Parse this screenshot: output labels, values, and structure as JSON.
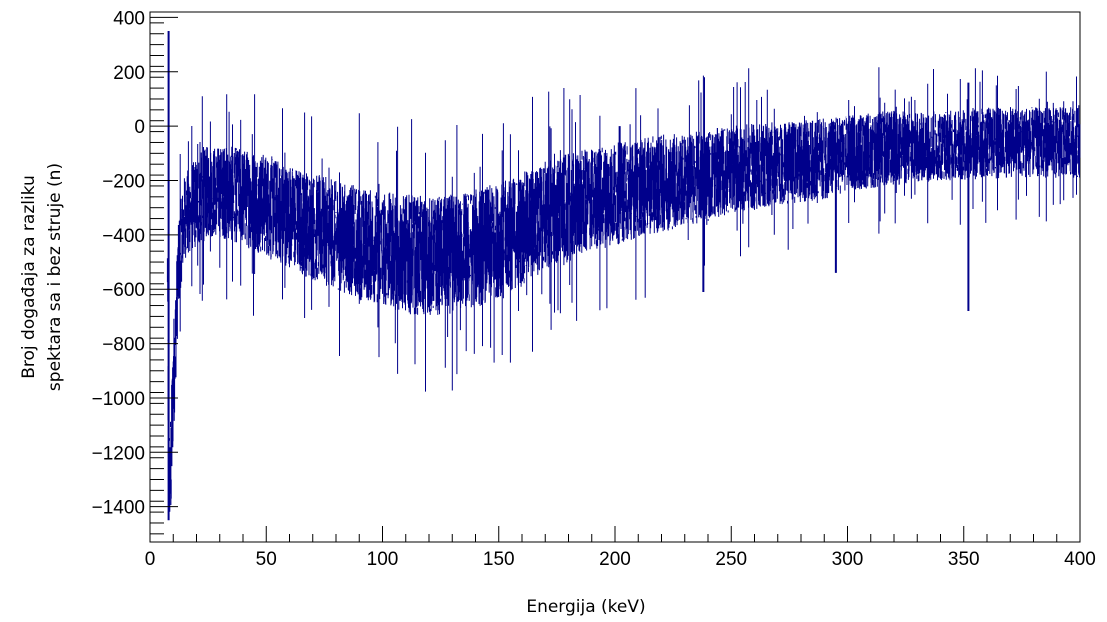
{
  "chart_data": {
    "type": "line",
    "title": "",
    "xlabel": "Energija (keV)",
    "ylabel_lines": [
      "Broj događaja za razliku",
      "spektara sa i bez struje (n)"
    ],
    "xlim": [
      0,
      400
    ],
    "ylim": [
      -1530,
      420
    ],
    "x_ticks": [
      0,
      50,
      100,
      150,
      200,
      250,
      300,
      350,
      400
    ],
    "y_ticks": [
      -1400,
      -1200,
      -1000,
      -800,
      -600,
      -400,
      -200,
      0,
      200,
      400
    ],
    "x_tick_labels": [
      "0",
      "50",
      "100",
      "150",
      "200",
      "250",
      "300",
      "350",
      "400"
    ],
    "y_tick_labels": [
      "−1400",
      "−1200",
      "−1000",
      "−800",
      "−600",
      "−400",
      "−200",
      "0",
      "200",
      "400"
    ],
    "grid": false,
    "series": [
      {
        "color": "#00008b",
        "style": "histogram",
        "x": [
          0,
          7,
          8,
          9,
          10,
          11,
          12,
          13,
          15,
          18,
          20,
          25,
          30,
          40,
          50,
          60,
          70,
          80,
          90,
          100,
          110,
          120,
          130,
          140,
          150,
          160,
          170,
          180,
          190,
          200,
          210,
          220,
          230,
          240,
          250,
          260,
          270,
          280,
          290,
          300,
          310,
          320,
          330,
          340,
          350,
          360,
          370,
          380,
          390,
          400
        ],
        "center": [
          0,
          250,
          -1300,
          -1250,
          -950,
          -780,
          -560,
          -450,
          -330,
          -300,
          -280,
          -240,
          -240,
          -260,
          -290,
          -330,
          -370,
          -400,
          -430,
          -450,
          -470,
          -480,
          -470,
          -450,
          -420,
          -380,
          -330,
          -300,
          -270,
          -250,
          -230,
          -210,
          -200,
          -180,
          -160,
          -150,
          -140,
          -130,
          -120,
          -100,
          -90,
          -80,
          -80,
          -70,
          -70,
          -60,
          -60,
          -60,
          -60,
          -60
        ],
        "band_width": [
          0,
          100,
          150,
          220,
          220,
          200,
          180,
          160,
          160,
          160,
          170,
          170,
          170,
          180,
          190,
          190,
          200,
          200,
          210,
          210,
          220,
          220,
          220,
          220,
          210,
          210,
          200,
          200,
          190,
          190,
          180,
          180,
          170,
          170,
          160,
          160,
          150,
          150,
          150,
          140,
          140,
          140,
          130,
          130,
          130,
          130,
          130,
          130,
          130,
          130
        ],
        "spikes": [
          {
            "x": 8,
            "low": -1450,
            "high": 350
          },
          {
            "x": 295,
            "low": -540,
            "high": -60
          },
          {
            "x": 352,
            "low": -680,
            "high": 160
          },
          {
            "x": 202,
            "low": -300,
            "high": 0
          },
          {
            "x": 238,
            "low": -610,
            "high": -100
          }
        ]
      }
    ]
  }
}
